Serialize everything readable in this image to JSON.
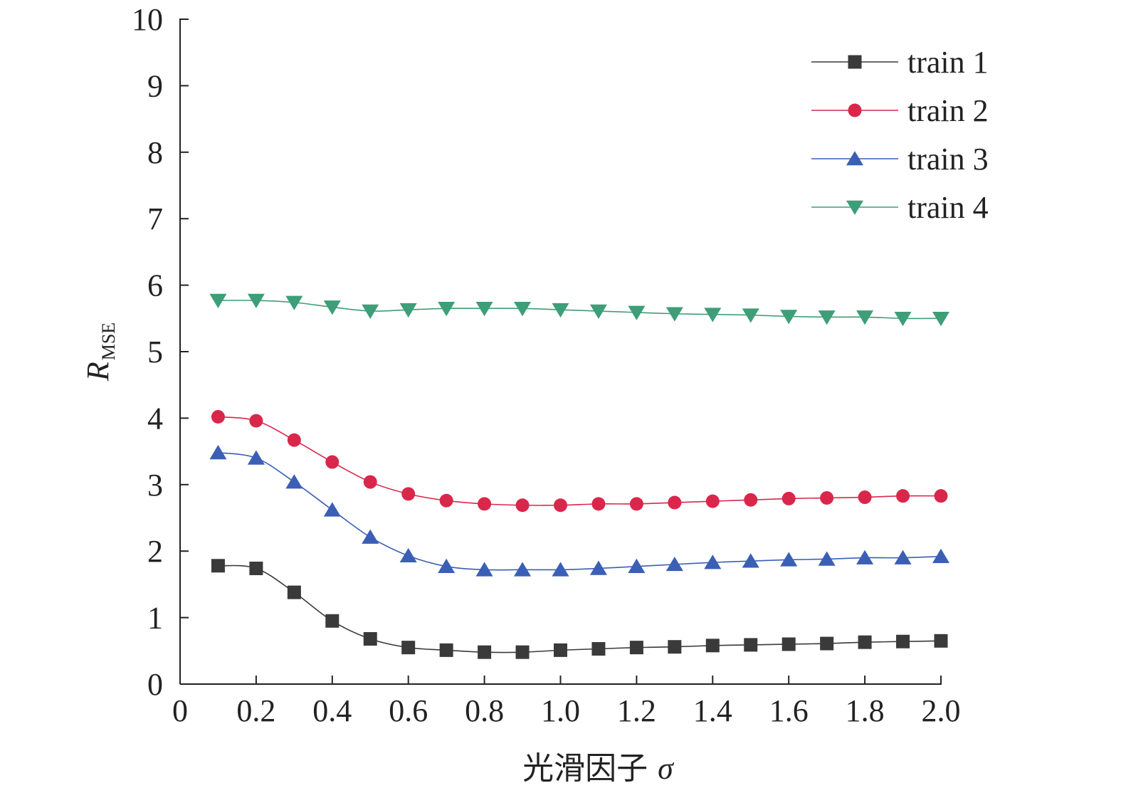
{
  "chart_data": {
    "type": "line",
    "xlabel": "光滑因子",
    "xlabel_symbol": "σ",
    "ylabel_main": "R",
    "ylabel_sub": "MSE",
    "xlim": [
      0,
      2.0
    ],
    "ylim": [
      0,
      10
    ],
    "x_ticks": [
      "0",
      "0.2",
      "0.4",
      "0.6",
      "0.8",
      "1.0",
      "1.2",
      "1.4",
      "1.6",
      "1.8",
      "2.0"
    ],
    "x_tick_values": [
      0,
      0.2,
      0.4,
      0.6,
      0.8,
      1.0,
      1.2,
      1.4,
      1.6,
      1.8,
      2.0
    ],
    "y_ticks": [
      "0",
      "1",
      "2",
      "3",
      "4",
      "5",
      "6",
      "7",
      "8",
      "9",
      "10"
    ],
    "y_tick_values": [
      0,
      1,
      2,
      3,
      4,
      5,
      6,
      7,
      8,
      9,
      10
    ],
    "grid": false,
    "legend_position": "top-right",
    "x": [
      0.1,
      0.2,
      0.3,
      0.4,
      0.5,
      0.6,
      0.7,
      0.8,
      0.9,
      1.0,
      1.1,
      1.2,
      1.3,
      1.4,
      1.5,
      1.6,
      1.7,
      1.8,
      1.9,
      2.0
    ],
    "series": [
      {
        "name": "train 1",
        "marker": "square",
        "color": "#3a3a3a",
        "values": [
          1.78,
          1.74,
          1.38,
          0.95,
          0.68,
          0.55,
          0.51,
          0.48,
          0.48,
          0.51,
          0.53,
          0.55,
          0.56,
          0.58,
          0.59,
          0.6,
          0.61,
          0.63,
          0.64,
          0.65
        ]
      },
      {
        "name": "train 2",
        "marker": "circle",
        "color": "#d9274b",
        "values": [
          4.02,
          3.96,
          3.67,
          3.34,
          3.04,
          2.86,
          2.76,
          2.71,
          2.69,
          2.69,
          2.71,
          2.71,
          2.73,
          2.75,
          2.77,
          2.79,
          2.8,
          2.81,
          2.83,
          2.83
        ]
      },
      {
        "name": "train 3",
        "marker": "triangle-up",
        "color": "#3a5fb5",
        "values": [
          3.48,
          3.4,
          3.04,
          2.62,
          2.21,
          1.93,
          1.77,
          1.72,
          1.72,
          1.72,
          1.74,
          1.77,
          1.8,
          1.83,
          1.85,
          1.87,
          1.88,
          1.9,
          1.9,
          1.92
        ]
      },
      {
        "name": "train 4",
        "marker": "triangle-down",
        "color": "#3d9e78",
        "values": [
          5.77,
          5.77,
          5.74,
          5.67,
          5.61,
          5.63,
          5.65,
          5.65,
          5.65,
          5.63,
          5.61,
          5.59,
          5.57,
          5.56,
          5.55,
          5.53,
          5.52,
          5.52,
          5.5,
          5.5
        ]
      }
    ]
  }
}
